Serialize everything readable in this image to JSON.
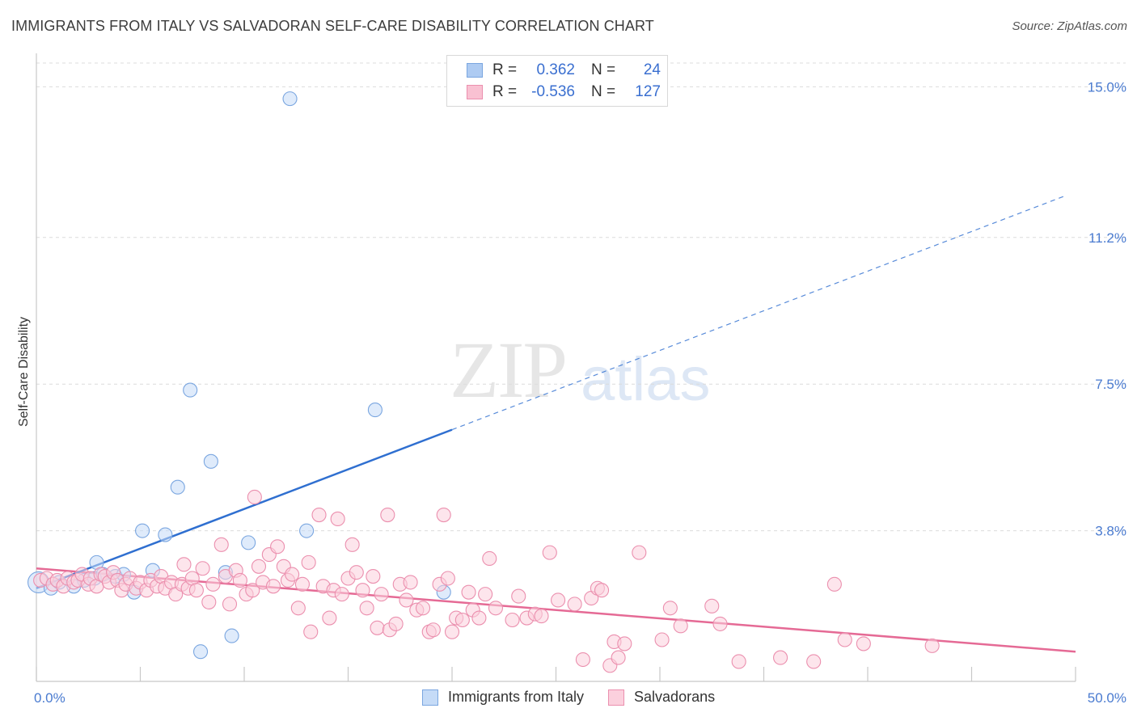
{
  "title": "IMMIGRANTS FROM ITALY VS SALVADORAN SELF-CARE DISABILITY CORRELATION CHART",
  "source": "Source: ZipAtlas.com",
  "watermark": {
    "zip": "ZIP",
    "atlas": "atlas"
  },
  "legend": {
    "rows": [
      {
        "r_label": "R =",
        "r_value": "0.362",
        "n_label": "N =",
        "n_value": "24",
        "color": "#aecbf2",
        "border": "#7aa6e0"
      },
      {
        "r_label": "R =",
        "r_value": "-0.536",
        "n_label": "N =",
        "n_value": "127",
        "color": "#f9c1d2",
        "border": "#eb8fae"
      }
    ]
  },
  "bottom_legend": [
    {
      "label": "Immigrants from Italy",
      "color": "#c5dbf7",
      "border": "#7aa6e0"
    },
    {
      "label": "Salvadorans",
      "color": "#fbd0dd",
      "border": "#eb8fae"
    }
  ],
  "chart_data": {
    "type": "scatter",
    "title": "IMMIGRANTS FROM ITALY VS SALVADORAN SELF-CARE DISABILITY CORRELATION CHART",
    "xlabel": "",
    "ylabel": "Self-Care Disability",
    "xlim": [
      0,
      50
    ],
    "ylim": [
      0,
      15.6
    ],
    "x_tick_labels": [
      "0.0%",
      "50.0%"
    ],
    "y_ticks": [
      3.8,
      7.5,
      11.2,
      15.0
    ],
    "y_tick_labels": [
      "3.8%",
      "7.5%",
      "11.2%",
      "15.0%"
    ],
    "grid": true,
    "series": [
      {
        "name": "Immigrants from Italy",
        "color": "#7aa6e0",
        "fill": "#c5dbf7",
        "trend_color": "#2f6fd0",
        "trend": {
          "x0": 0,
          "y0": 2.35,
          "x1": 20,
          "y1": 6.35,
          "dash_to_x": 49.5,
          "dash_to_y": 12.25
        },
        "points": [
          {
            "x": 0.1,
            "y": 2.5,
            "big": true
          },
          {
            "x": 0.7,
            "y": 2.35
          },
          {
            "x": 1.1,
            "y": 2.5
          },
          {
            "x": 1.8,
            "y": 2.4
          },
          {
            "x": 2.3,
            "y": 2.55
          },
          {
            "x": 2.8,
            "y": 2.6
          },
          {
            "x": 2.9,
            "y": 3.0
          },
          {
            "x": 3.2,
            "y": 2.7
          },
          {
            "x": 3.8,
            "y": 2.65
          },
          {
            "x": 4.2,
            "y": 2.7
          },
          {
            "x": 4.7,
            "y": 2.25
          },
          {
            "x": 5.1,
            "y": 3.8
          },
          {
            "x": 5.6,
            "y": 2.8
          },
          {
            "x": 6.2,
            "y": 3.7
          },
          {
            "x": 6.8,
            "y": 4.9
          },
          {
            "x": 7.4,
            "y": 7.35
          },
          {
            "x": 7.9,
            "y": 0.75
          },
          {
            "x": 8.4,
            "y": 5.55
          },
          {
            "x": 9.1,
            "y": 2.75
          },
          {
            "x": 9.4,
            "y": 1.15
          },
          {
            "x": 10.2,
            "y": 3.5
          },
          {
            "x": 12.2,
            "y": 14.7
          },
          {
            "x": 13.0,
            "y": 3.8
          },
          {
            "x": 16.3,
            "y": 6.85
          },
          {
            "x": 19.6,
            "y": 2.25
          }
        ]
      },
      {
        "name": "Salvadorans",
        "color": "#eb8fae",
        "fill": "#fbd0dd",
        "trend_color": "#e56a95",
        "trend": {
          "x0": 0,
          "y0": 2.85,
          "x1": 50,
          "y1": 0.75
        },
        "points": [
          {
            "x": 0.2,
            "y": 2.55
          },
          {
            "x": 0.5,
            "y": 2.6
          },
          {
            "x": 0.8,
            "y": 2.45
          },
          {
            "x": 1.0,
            "y": 2.55
          },
          {
            "x": 1.3,
            "y": 2.4
          },
          {
            "x": 1.5,
            "y": 2.6
          },
          {
            "x": 1.8,
            "y": 2.5
          },
          {
            "x": 2.0,
            "y": 2.55
          },
          {
            "x": 2.2,
            "y": 2.7
          },
          {
            "x": 2.5,
            "y": 2.45
          },
          {
            "x": 2.6,
            "y": 2.6
          },
          {
            "x": 2.9,
            "y": 2.4
          },
          {
            "x": 3.1,
            "y": 2.7
          },
          {
            "x": 3.3,
            "y": 2.65
          },
          {
            "x": 3.5,
            "y": 2.5
          },
          {
            "x": 3.7,
            "y": 2.75
          },
          {
            "x": 3.9,
            "y": 2.55
          },
          {
            "x": 4.1,
            "y": 2.3
          },
          {
            "x": 4.3,
            "y": 2.45
          },
          {
            "x": 4.5,
            "y": 2.6
          },
          {
            "x": 4.8,
            "y": 2.35
          },
          {
            "x": 5.0,
            "y": 2.5
          },
          {
            "x": 5.3,
            "y": 2.3
          },
          {
            "x": 5.5,
            "y": 2.55
          },
          {
            "x": 5.8,
            "y": 2.4
          },
          {
            "x": 6.0,
            "y": 2.65
          },
          {
            "x": 6.2,
            "y": 2.35
          },
          {
            "x": 6.5,
            "y": 2.5
          },
          {
            "x": 6.7,
            "y": 2.2
          },
          {
            "x": 7.0,
            "y": 2.45
          },
          {
            "x": 7.1,
            "y": 2.95
          },
          {
            "x": 7.3,
            "y": 2.35
          },
          {
            "x": 7.5,
            "y": 2.6
          },
          {
            "x": 7.7,
            "y": 2.3
          },
          {
            "x": 8.0,
            "y": 2.85
          },
          {
            "x": 8.3,
            "y": 2.0
          },
          {
            "x": 8.5,
            "y": 2.45
          },
          {
            "x": 8.9,
            "y": 3.45
          },
          {
            "x": 9.1,
            "y": 2.65
          },
          {
            "x": 9.3,
            "y": 1.95
          },
          {
            "x": 9.6,
            "y": 2.8
          },
          {
            "x": 9.8,
            "y": 2.55
          },
          {
            "x": 10.1,
            "y": 2.2
          },
          {
            "x": 10.4,
            "y": 2.3
          },
          {
            "x": 10.5,
            "y": 4.65
          },
          {
            "x": 10.7,
            "y": 2.9
          },
          {
            "x": 10.9,
            "y": 2.5
          },
          {
            "x": 11.2,
            "y": 3.2
          },
          {
            "x": 11.4,
            "y": 2.4
          },
          {
            "x": 11.6,
            "y": 3.4
          },
          {
            "x": 11.9,
            "y": 2.9
          },
          {
            "x": 12.1,
            "y": 2.55
          },
          {
            "x": 12.3,
            "y": 2.7
          },
          {
            "x": 12.6,
            "y": 1.85
          },
          {
            "x": 12.8,
            "y": 2.45
          },
          {
            "x": 13.1,
            "y": 3.0
          },
          {
            "x": 13.2,
            "y": 1.25
          },
          {
            "x": 13.6,
            "y": 4.2
          },
          {
            "x": 13.8,
            "y": 2.4
          },
          {
            "x": 14.1,
            "y": 1.6
          },
          {
            "x": 14.3,
            "y": 2.3
          },
          {
            "x": 14.5,
            "y": 4.1
          },
          {
            "x": 14.7,
            "y": 2.2
          },
          {
            "x": 15.0,
            "y": 2.6
          },
          {
            "x": 15.2,
            "y": 3.45
          },
          {
            "x": 15.4,
            "y": 2.75
          },
          {
            "x": 15.7,
            "y": 2.3
          },
          {
            "x": 15.9,
            "y": 1.85
          },
          {
            "x": 16.2,
            "y": 2.65
          },
          {
            "x": 16.4,
            "y": 1.35
          },
          {
            "x": 16.6,
            "y": 2.2
          },
          {
            "x": 16.9,
            "y": 4.2
          },
          {
            "x": 17.0,
            "y": 1.3
          },
          {
            "x": 17.3,
            "y": 1.45
          },
          {
            "x": 17.5,
            "y": 2.45
          },
          {
            "x": 17.8,
            "y": 2.05
          },
          {
            "x": 18.0,
            "y": 2.5
          },
          {
            "x": 18.3,
            "y": 1.8
          },
          {
            "x": 18.6,
            "y": 1.85
          },
          {
            "x": 18.9,
            "y": 1.25
          },
          {
            "x": 19.1,
            "y": 1.3
          },
          {
            "x": 19.4,
            "y": 2.45
          },
          {
            "x": 19.6,
            "y": 4.2
          },
          {
            "x": 19.8,
            "y": 2.6
          },
          {
            "x": 20.0,
            "y": 1.25
          },
          {
            "x": 20.2,
            "y": 1.6
          },
          {
            "x": 20.5,
            "y": 1.55
          },
          {
            "x": 20.8,
            "y": 2.25
          },
          {
            "x": 21.0,
            "y": 1.8
          },
          {
            "x": 21.3,
            "y": 1.6
          },
          {
            "x": 21.6,
            "y": 2.2
          },
          {
            "x": 21.8,
            "y": 3.1
          },
          {
            "x": 22.1,
            "y": 1.85
          },
          {
            "x": 22.9,
            "y": 1.55
          },
          {
            "x": 23.2,
            "y": 2.15
          },
          {
            "x": 23.6,
            "y": 1.6
          },
          {
            "x": 24.0,
            "y": 1.7
          },
          {
            "x": 24.3,
            "y": 1.65
          },
          {
            "x": 24.7,
            "y": 3.25
          },
          {
            "x": 25.1,
            "y": 2.05
          },
          {
            "x": 25.9,
            "y": 1.95
          },
          {
            "x": 26.3,
            "y": 0.55
          },
          {
            "x": 26.7,
            "y": 2.1
          },
          {
            "x": 27.0,
            "y": 2.35
          },
          {
            "x": 27.2,
            "y": 2.3
          },
          {
            "x": 27.6,
            "y": 0.4
          },
          {
            "x": 27.8,
            "y": 1.0
          },
          {
            "x": 28.0,
            "y": 0.6
          },
          {
            "x": 28.3,
            "y": 0.95
          },
          {
            "x": 29.0,
            "y": 3.25
          },
          {
            "x": 30.1,
            "y": 1.05
          },
          {
            "x": 30.5,
            "y": 1.85
          },
          {
            "x": 31.0,
            "y": 1.4
          },
          {
            "x": 32.5,
            "y": 1.9
          },
          {
            "x": 32.9,
            "y": 1.45
          },
          {
            "x": 33.8,
            "y": 0.5
          },
          {
            "x": 35.8,
            "y": 0.6
          },
          {
            "x": 37.4,
            "y": 0.5
          },
          {
            "x": 38.4,
            "y": 2.45
          },
          {
            "x": 38.9,
            "y": 1.05
          },
          {
            "x": 39.8,
            "y": 0.95
          },
          {
            "x": 43.1,
            "y": 0.9
          }
        ]
      }
    ]
  }
}
